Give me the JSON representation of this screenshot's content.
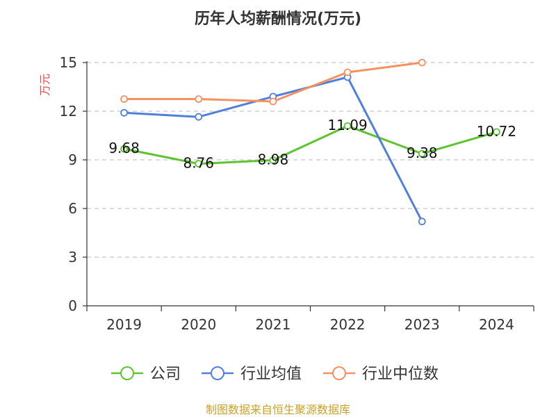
{
  "chart_data": {
    "type": "line",
    "title": "历年人均薪酬情况(万元)",
    "ylabel": "万元",
    "xlabel": "",
    "categories": [
      "2019",
      "2020",
      "2021",
      "2022",
      "2023",
      "2024"
    ],
    "ylim": [
      0,
      15
    ],
    "yticks": [
      "0",
      "3",
      "6",
      "9",
      "12",
      "15"
    ],
    "grid": true,
    "legend_position": "bottom",
    "series": [
      {
        "name": "公司",
        "color": "#5cc42f",
        "values": [
          9.68,
          8.76,
          8.98,
          11.09,
          9.38,
          10.72
        ],
        "labels": [
          "9.68",
          "8.76",
          "8.98",
          "11.09",
          "9.38",
          "10.72"
        ]
      },
      {
        "name": "行业均值",
        "color": "#4f80dd",
        "values": [
          11.9,
          11.65,
          12.9,
          14.1,
          5.2,
          null
        ]
      },
      {
        "name": "行业中位数",
        "color": "#f5915f",
        "values": [
          12.75,
          12.75,
          12.6,
          14.4,
          15.0,
          null
        ]
      }
    ],
    "source": "制图数据来自恒生聚源数据库"
  }
}
